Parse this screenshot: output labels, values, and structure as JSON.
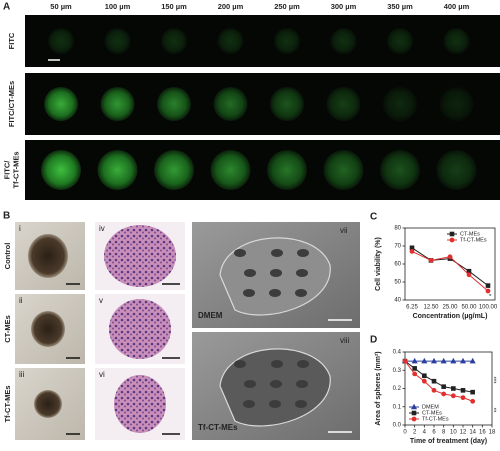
{
  "panel_a": {
    "label": "A",
    "columns": [
      "50 µm",
      "100 µm",
      "150 µm",
      "200 µm",
      "250 µm",
      "300 µm",
      "350 µm",
      "400 µm"
    ],
    "rows": [
      [
        "FITC"
      ],
      [
        "FITC/CT-MEs"
      ],
      [
        "FITC/",
        "Tf-CT-MEs"
      ]
    ]
  },
  "panel_b": {
    "label": "B",
    "rows": [
      "Control",
      "CT-MEs",
      "Tf-CT-MEs"
    ],
    "numerals": [
      "i",
      "ii",
      "iii",
      "iv",
      "v",
      "vi",
      "vii",
      "viii"
    ],
    "sem_labels": [
      "DMEM",
      "Tf-CT-MEs"
    ]
  },
  "chart_data": [
    {
      "type": "line",
      "label": "C",
      "ylabel": "Cell viability (%)",
      "xlabel": "Concentration (µg/mL)",
      "categories": [
        "6.25",
        "12.50",
        "25.00",
        "50.00",
        "100.00"
      ],
      "ylim": [
        40,
        80
      ],
      "yticks": [
        40,
        50,
        60,
        70,
        80
      ],
      "legend": "upper right",
      "annotations": [
        "*"
      ],
      "series": [
        {
          "name": "CT-MEs",
          "color": "#222222",
          "marker": "square",
          "values": [
            69,
            62,
            63,
            56,
            48
          ]
        },
        {
          "name": "Tf-CT-MEs",
          "color": "#e03030",
          "marker": "circle",
          "values": [
            67,
            62,
            64,
            54,
            45
          ]
        }
      ]
    },
    {
      "type": "line",
      "label": "D",
      "ylabel": "Area of spheres (mm²)",
      "xlabel": "Time of treatment (day)",
      "x": [
        0,
        2,
        4,
        6,
        8,
        10,
        12,
        14
      ],
      "xlim": [
        0,
        18
      ],
      "xticks": [
        0,
        2,
        4,
        6,
        8,
        10,
        12,
        14,
        16,
        18
      ],
      "ylim": [
        0,
        0.4
      ],
      "yticks": [
        {
          "value": 0,
          "label": "0.0"
        },
        0.1,
        0.2,
        0.3,
        0.4
      ],
      "legend": "lower left",
      "annotations": [
        "***",
        "**"
      ],
      "series": [
        {
          "name": "DMEM",
          "color": "#2a3f9f",
          "marker": "triangle",
          "values": [
            0.35,
            0.35,
            0.35,
            0.35,
            0.35,
            0.35,
            0.35,
            0.35
          ]
        },
        {
          "name": "CT-MEs",
          "color": "#222222",
          "marker": "square",
          "values": [
            0.35,
            0.31,
            0.27,
            0.24,
            0.21,
            0.2,
            0.19,
            0.18
          ]
        },
        {
          "name": "Tf-CT-MEs",
          "color": "#e03030",
          "marker": "circle",
          "values": [
            0.35,
            0.28,
            0.24,
            0.19,
            0.17,
            0.16,
            0.15,
            0.13
          ]
        }
      ]
    }
  ]
}
